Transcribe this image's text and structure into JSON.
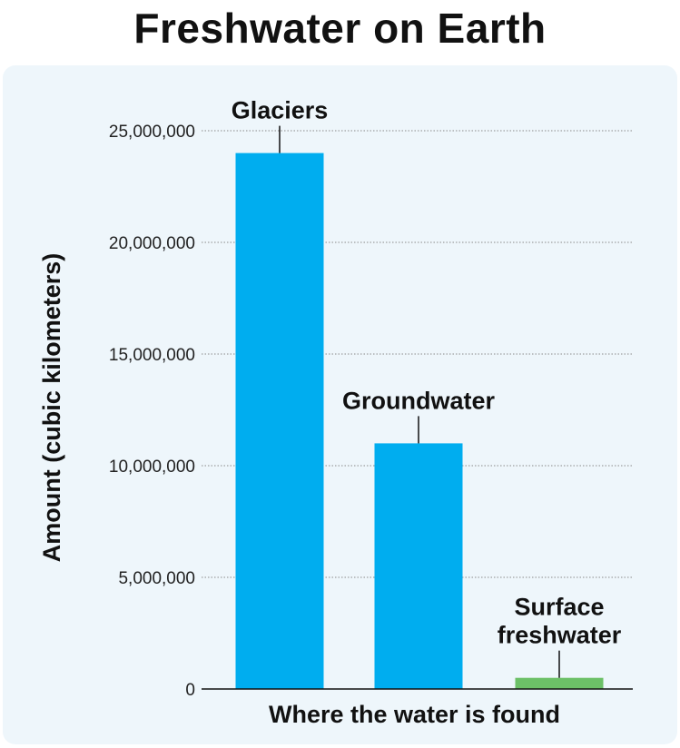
{
  "chart_data": {
    "type": "bar",
    "title": "Freshwater on Earth",
    "xlabel": "Where the water is found",
    "ylabel": "Amount (cubic kilometers)",
    "ylim": [
      0,
      25000000
    ],
    "yticks": [
      0,
      5000000,
      10000000,
      15000000,
      20000000,
      25000000
    ],
    "ytick_labels": [
      "0",
      "5,000,000",
      "10,000,000",
      "15,000,000",
      "20,000,000",
      "25,000,000"
    ],
    "categories": [
      "Glaciers",
      "Groundwater",
      "Surface freshwater"
    ],
    "category_label_lines": [
      [
        "Glaciers"
      ],
      [
        "Groundwater"
      ],
      [
        "Surface",
        "freshwater"
      ]
    ],
    "values": [
      24000000,
      11000000,
      500000
    ],
    "bar_colors": [
      "#00adef",
      "#00adef",
      "#6cc067"
    ],
    "grid": true
  },
  "colors": {
    "panel_background": "#eef6fb",
    "gridline": "#8a8a8a",
    "axis": "#111111"
  }
}
